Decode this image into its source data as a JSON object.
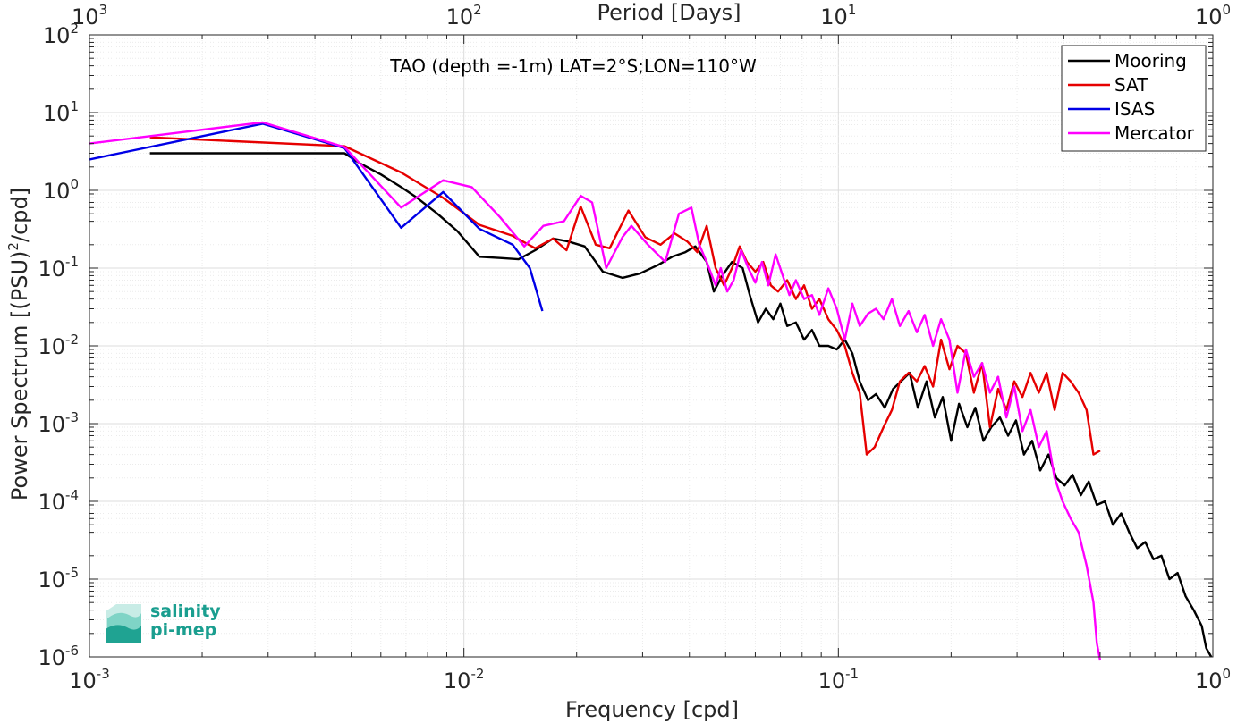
{
  "chart_data": {
    "type": "line",
    "title": "TAO (depth =-1m) LAT=2°S;LON=110°W",
    "xlabel": "Frequency [cpd]",
    "ylabel_main": "Power Spectrum [(PSU)",
    "ylabel_sup": "2",
    "ylabel_tail": "/cpd]",
    "top_xlabel": "Period [Days]",
    "xscale": "log",
    "yscale": "log",
    "xlim": [
      0.001,
      1
    ],
    "ylim": [
      1e-06,
      100
    ],
    "grid": true,
    "legend_position": "top-right",
    "x_ticks": [
      {
        "value": 0.001,
        "base": "10",
        "exp": "-3"
      },
      {
        "value": 0.01,
        "base": "10",
        "exp": "-2"
      },
      {
        "value": 0.1,
        "base": "10",
        "exp": "-1"
      },
      {
        "value": 1,
        "base": "10",
        "exp": "0"
      }
    ],
    "top_ticks": [
      {
        "freq": 0.001,
        "base": "10",
        "exp": "3"
      },
      {
        "freq": 0.01,
        "base": "10",
        "exp": "2"
      },
      {
        "freq": 0.1,
        "base": "10",
        "exp": "1"
      },
      {
        "freq": 1,
        "base": "10",
        "exp": "0"
      }
    ],
    "y_ticks": [
      {
        "value": 100,
        "base": "10",
        "exp": "2"
      },
      {
        "value": 10,
        "base": "10",
        "exp": "1"
      },
      {
        "value": 1,
        "base": "10",
        "exp": "0"
      },
      {
        "value": 0.1,
        "base": "10",
        "exp": "-1"
      },
      {
        "value": 0.01,
        "base": "10",
        "exp": "-2"
      },
      {
        "value": 0.001,
        "base": "10",
        "exp": "-3"
      },
      {
        "value": 0.0001,
        "base": "10",
        "exp": "-4"
      },
      {
        "value": 1e-05,
        "base": "10",
        "exp": "-5"
      },
      {
        "value": 1e-06,
        "base": "10",
        "exp": "-6"
      }
    ],
    "series": [
      {
        "name": "Mooring",
        "color": "#000000",
        "points": [
          [
            0.00145,
            3.0
          ],
          [
            0.0048,
            3.0
          ],
          [
            0.0053,
            2.2
          ],
          [
            0.006,
            1.6
          ],
          [
            0.0068,
            1.1
          ],
          [
            0.0075,
            0.8
          ],
          [
            0.0085,
            0.5
          ],
          [
            0.0096,
            0.3
          ],
          [
            0.011,
            0.14
          ],
          [
            0.0125,
            0.135
          ],
          [
            0.014,
            0.13
          ],
          [
            0.0155,
            0.17
          ],
          [
            0.0173,
            0.24
          ],
          [
            0.019,
            0.22
          ],
          [
            0.021,
            0.19
          ],
          [
            0.0235,
            0.09
          ],
          [
            0.0265,
            0.075
          ],
          [
            0.0295,
            0.085
          ],
          [
            0.033,
            0.11
          ],
          [
            0.036,
            0.14
          ],
          [
            0.039,
            0.16
          ],
          [
            0.0415,
            0.19
          ],
          [
            0.0445,
            0.12
          ],
          [
            0.0465,
            0.05
          ],
          [
            0.049,
            0.08
          ],
          [
            0.052,
            0.12
          ],
          [
            0.0555,
            0.1
          ],
          [
            0.058,
            0.045
          ],
          [
            0.061,
            0.02
          ],
          [
            0.064,
            0.03
          ],
          [
            0.067,
            0.022
          ],
          [
            0.07,
            0.035
          ],
          [
            0.073,
            0.018
          ],
          [
            0.077,
            0.02
          ],
          [
            0.081,
            0.012
          ],
          [
            0.085,
            0.016
          ],
          [
            0.089,
            0.01
          ],
          [
            0.094,
            0.01
          ],
          [
            0.099,
            0.009
          ],
          [
            0.104,
            0.012
          ],
          [
            0.109,
            0.008
          ],
          [
            0.114,
            0.0035
          ],
          [
            0.12,
            0.002
          ],
          [
            0.126,
            0.0024
          ],
          [
            0.133,
            0.0016
          ],
          [
            0.14,
            0.0028
          ],
          [
            0.147,
            0.0035
          ],
          [
            0.155,
            0.0045
          ],
          [
            0.163,
            0.0016
          ],
          [
            0.172,
            0.0035
          ],
          [
            0.181,
            0.0012
          ],
          [
            0.19,
            0.0022
          ],
          [
            0.2,
            0.0006
          ],
          [
            0.21,
            0.0018
          ],
          [
            0.221,
            0.0009
          ],
          [
            0.232,
            0.0016
          ],
          [
            0.244,
            0.0006
          ],
          [
            0.256,
            0.0009
          ],
          [
            0.27,
            0.0012
          ],
          [
            0.284,
            0.0007
          ],
          [
            0.298,
            0.0011
          ],
          [
            0.313,
            0.0004
          ],
          [
            0.329,
            0.0006
          ],
          [
            0.346,
            0.00025
          ],
          [
            0.364,
            0.0004
          ],
          [
            0.382,
            0.0002
          ],
          [
            0.402,
            0.00016
          ],
          [
            0.422,
            0.00022
          ],
          [
            0.444,
            0.00012
          ],
          [
            0.466,
            0.00018
          ],
          [
            0.49,
            9e-05
          ],
          [
            0.515,
            0.0001
          ],
          [
            0.541,
            5e-05
          ],
          [
            0.569,
            7e-05
          ],
          [
            0.598,
            4e-05
          ],
          [
            0.628,
            2.5e-05
          ],
          [
            0.66,
            3e-05
          ],
          [
            0.694,
            1.8e-05
          ],
          [
            0.729,
            2e-05
          ],
          [
            0.766,
            1e-05
          ],
          [
            0.805,
            1.2e-05
          ],
          [
            0.846,
            6e-06
          ],
          [
            0.889,
            4e-06
          ],
          [
            0.934,
            2.5e-06
          ],
          [
            0.96,
            1.3e-06
          ],
          [
            0.99,
            1e-06
          ]
        ]
      },
      {
        "name": "SAT",
        "color": "#e60000",
        "points": [
          [
            0.00145,
            4.8
          ],
          [
            0.0048,
            3.7
          ],
          [
            0.0068,
            1.7
          ],
          [
            0.0088,
            0.8
          ],
          [
            0.011,
            0.36
          ],
          [
            0.0135,
            0.26
          ],
          [
            0.0155,
            0.18
          ],
          [
            0.0173,
            0.24
          ],
          [
            0.0188,
            0.17
          ],
          [
            0.0205,
            0.62
          ],
          [
            0.0225,
            0.2
          ],
          [
            0.0245,
            0.18
          ],
          [
            0.0275,
            0.55
          ],
          [
            0.0305,
            0.25
          ],
          [
            0.0335,
            0.2
          ],
          [
            0.0365,
            0.28
          ],
          [
            0.0395,
            0.22
          ],
          [
            0.042,
            0.16
          ],
          [
            0.0445,
            0.35
          ],
          [
            0.047,
            0.1
          ],
          [
            0.0495,
            0.06
          ],
          [
            0.052,
            0.1
          ],
          [
            0.0545,
            0.19
          ],
          [
            0.057,
            0.12
          ],
          [
            0.06,
            0.09
          ],
          [
            0.063,
            0.12
          ],
          [
            0.066,
            0.06
          ],
          [
            0.069,
            0.05
          ],
          [
            0.073,
            0.07
          ],
          [
            0.077,
            0.04
          ],
          [
            0.081,
            0.06
          ],
          [
            0.085,
            0.03
          ],
          [
            0.089,
            0.04
          ],
          [
            0.094,
            0.022
          ],
          [
            0.099,
            0.016
          ],
          [
            0.104,
            0.01
          ],
          [
            0.109,
            0.0045
          ],
          [
            0.114,
            0.0025
          ],
          [
            0.119,
            0.0004
          ],
          [
            0.125,
            0.0005
          ],
          [
            0.132,
            0.0009
          ],
          [
            0.139,
            0.0015
          ],
          [
            0.146,
            0.0035
          ],
          [
            0.154,
            0.0045
          ],
          [
            0.162,
            0.0035
          ],
          [
            0.17,
            0.0055
          ],
          [
            0.179,
            0.003
          ],
          [
            0.188,
            0.012
          ],
          [
            0.198,
            0.005
          ],
          [
            0.208,
            0.01
          ],
          [
            0.219,
            0.008
          ],
          [
            0.23,
            0.0025
          ],
          [
            0.242,
            0.006
          ],
          [
            0.254,
            0.0009
          ],
          [
            0.267,
            0.0028
          ],
          [
            0.281,
            0.0015
          ],
          [
            0.295,
            0.0035
          ],
          [
            0.31,
            0.0022
          ],
          [
            0.326,
            0.0045
          ],
          [
            0.343,
            0.0025
          ],
          [
            0.36,
            0.0045
          ],
          [
            0.378,
            0.0015
          ],
          [
            0.397,
            0.0045
          ],
          [
            0.417,
            0.0035
          ],
          [
            0.438,
            0.0025
          ],
          [
            0.46,
            0.0015
          ],
          [
            0.48,
            0.0004
          ],
          [
            0.5,
            0.00045
          ]
        ]
      },
      {
        "name": "ISAS",
        "color": "#0000e6",
        "points": [
          [
            0.001,
            2.5
          ],
          [
            0.0029,
            7.2
          ],
          [
            0.0048,
            3.5
          ],
          [
            0.0068,
            0.33
          ],
          [
            0.0088,
            0.95
          ],
          [
            0.011,
            0.32
          ],
          [
            0.0135,
            0.2
          ],
          [
            0.015,
            0.1
          ],
          [
            0.0162,
            0.028
          ]
        ]
      },
      {
        "name": "Mercator",
        "color": "#ff00ff",
        "points": [
          [
            0.001,
            4.0
          ],
          [
            0.0029,
            7.5
          ],
          [
            0.0048,
            3.6
          ],
          [
            0.0068,
            0.6
          ],
          [
            0.0088,
            1.35
          ],
          [
            0.0105,
            1.1
          ],
          [
            0.0125,
            0.45
          ],
          [
            0.0145,
            0.19
          ],
          [
            0.0163,
            0.35
          ],
          [
            0.0185,
            0.4
          ],
          [
            0.0205,
            0.85
          ],
          [
            0.022,
            0.7
          ],
          [
            0.024,
            0.1
          ],
          [
            0.0265,
            0.25
          ],
          [
            0.028,
            0.35
          ],
          [
            0.031,
            0.2
          ],
          [
            0.0345,
            0.12
          ],
          [
            0.0375,
            0.5
          ],
          [
            0.0405,
            0.6
          ],
          [
            0.0425,
            0.2
          ],
          [
            0.0445,
            0.12
          ],
          [
            0.047,
            0.06
          ],
          [
            0.0485,
            0.1
          ],
          [
            0.0505,
            0.05
          ],
          [
            0.0525,
            0.07
          ],
          [
            0.055,
            0.17
          ],
          [
            0.0575,
            0.1
          ],
          [
            0.06,
            0.065
          ],
          [
            0.0625,
            0.12
          ],
          [
            0.065,
            0.06
          ],
          [
            0.068,
            0.15
          ],
          [
            0.071,
            0.08
          ],
          [
            0.074,
            0.045
          ],
          [
            0.077,
            0.07
          ],
          [
            0.081,
            0.04
          ],
          [
            0.085,
            0.045
          ],
          [
            0.089,
            0.025
          ],
          [
            0.094,
            0.055
          ],
          [
            0.099,
            0.03
          ],
          [
            0.104,
            0.012
          ],
          [
            0.109,
            0.035
          ],
          [
            0.114,
            0.018
          ],
          [
            0.12,
            0.026
          ],
          [
            0.126,
            0.03
          ],
          [
            0.132,
            0.022
          ],
          [
            0.139,
            0.04
          ],
          [
            0.146,
            0.018
          ],
          [
            0.154,
            0.028
          ],
          [
            0.162,
            0.015
          ],
          [
            0.17,
            0.025
          ],
          [
            0.179,
            0.01
          ],
          [
            0.188,
            0.022
          ],
          [
            0.198,
            0.012
          ],
          [
            0.208,
            0.0025
          ],
          [
            0.219,
            0.009
          ],
          [
            0.23,
            0.004
          ],
          [
            0.242,
            0.006
          ],
          [
            0.254,
            0.0025
          ],
          [
            0.267,
            0.004
          ],
          [
            0.281,
            0.0012
          ],
          [
            0.295,
            0.003
          ],
          [
            0.31,
            0.0008
          ],
          [
            0.326,
            0.0015
          ],
          [
            0.343,
            0.0005
          ],
          [
            0.36,
            0.0008
          ],
          [
            0.378,
            0.0002
          ],
          [
            0.397,
            0.0001
          ],
          [
            0.417,
            6e-05
          ],
          [
            0.438,
            4e-05
          ],
          [
            0.46,
            1.5e-05
          ],
          [
            0.48,
            5e-06
          ],
          [
            0.49,
            1.5e-06
          ],
          [
            0.5,
            9e-07
          ]
        ]
      }
    ]
  },
  "logo": {
    "line1": "salinity",
    "line2": "pi-mep"
  }
}
